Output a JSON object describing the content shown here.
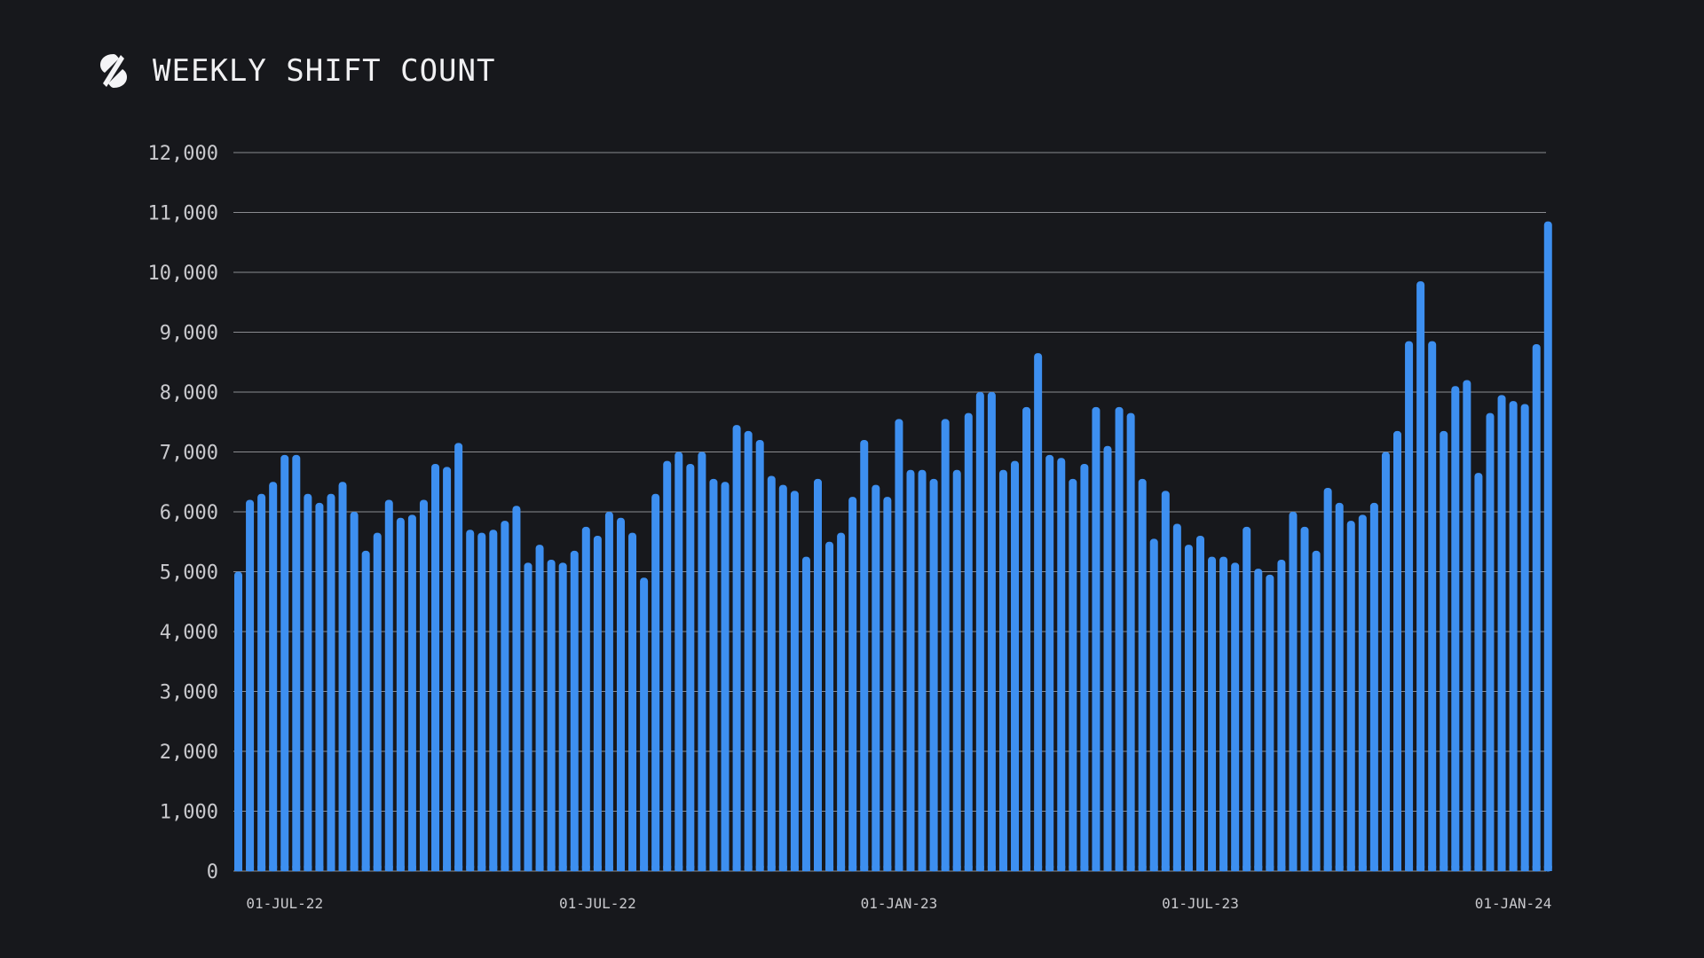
{
  "header": {
    "title": "Weekly Shift Count",
    "logo_icon": "s-slash-logo-icon"
  },
  "colors": {
    "background": "#17181c",
    "bar": "#3d8ff0",
    "grid": "#8a8b90",
    "text": "#c9c9cd"
  },
  "chart_data": {
    "type": "bar",
    "title": "Weekly Shift Count",
    "xlabel": "",
    "ylabel": "",
    "ylim": [
      0,
      12000
    ],
    "yticks": [
      0,
      1000,
      2000,
      3000,
      4000,
      5000,
      6000,
      7000,
      8000,
      9000,
      10000,
      11000,
      12000
    ],
    "ytick_labels": [
      "0",
      "1,000",
      "2,000",
      "3,000",
      "4,000",
      "5,000",
      "6,000",
      "7,000",
      "8,000",
      "9,000",
      "10,000",
      "11,000",
      "12,000"
    ],
    "xtick_labels": [
      {
        "label": "01-JUL-22",
        "index": 4
      },
      {
        "label": "01-JUL-22",
        "index": 31
      },
      {
        "label": "01-JAN-23",
        "index": 57
      },
      {
        "label": "01-JUL-23",
        "index": 83
      },
      {
        "label": "01-JAN-24",
        "index": 110
      }
    ],
    "grid": true,
    "values": [
      5000,
      6200,
      6300,
      6500,
      6950,
      6950,
      6300,
      6150,
      6300,
      6500,
      6000,
      5350,
      5650,
      6200,
      5900,
      5950,
      6200,
      6800,
      6750,
      7150,
      5700,
      5650,
      5700,
      5850,
      6100,
      5150,
      5450,
      5200,
      5150,
      5350,
      5750,
      5600,
      6000,
      5900,
      5650,
      4900,
      6300,
      6850,
      7000,
      6800,
      7000,
      6550,
      6500,
      7450,
      7350,
      7200,
      6600,
      6450,
      6350,
      5250,
      6550,
      5500,
      5650,
      6250,
      7200,
      6450,
      6250,
      7550,
      6700,
      6700,
      6550,
      7550,
      6700,
      7650,
      8000,
      8000,
      6700,
      6850,
      7750,
      8650,
      6950,
      6900,
      6550,
      6800,
      7750,
      7100,
      7750,
      7650,
      6550,
      5550,
      6350,
      5800,
      5450,
      5600,
      5250,
      5250,
      5150,
      5750,
      5050,
      4950,
      5200,
      6000,
      5750,
      5350,
      6400,
      6150,
      5850,
      5950,
      6150,
      7000,
      7350,
      8850,
      9850,
      8850,
      7350,
      8100,
      8200,
      6650,
      7650,
      7950,
      7850,
      7800,
      8800,
      10850
    ]
  }
}
